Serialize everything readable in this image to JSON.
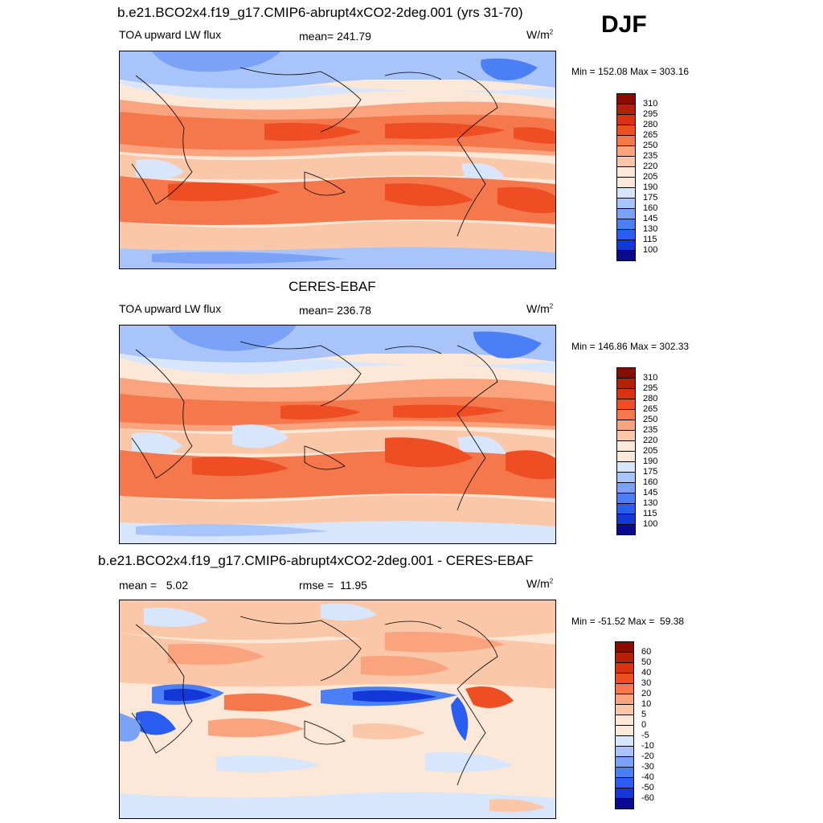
{
  "season": "DJF",
  "units_base": "W/m",
  "units_exp": "2",
  "colors": {
    "lw_scale": [
      "#0a0a8c",
      "#0b1fb4",
      "#1437d9",
      "#2a5ef0",
      "#4a7ff5",
      "#7aa2f7",
      "#a8c4fa",
      "#d7e6fc",
      "#fde8d8",
      "#fbc7a9",
      "#f9a47f",
      "#f5784d",
      "#ef4d23",
      "#da3210",
      "#b22006",
      "#8b0a00"
    ],
    "diff_scale": [
      "#0a0a8c",
      "#0b1fb4",
      "#1437d9",
      "#2a5ef0",
      "#4a7ff5",
      "#7aa2f7",
      "#a8c4fa",
      "#d7e6fc",
      "#fde8d8",
      "#fbc7a9",
      "#f9a47f",
      "#f5784d",
      "#ef4d23",
      "#da3210",
      "#b22006",
      "#8b0a00"
    ]
  },
  "panels": [
    {
      "title": "b.e21.BCO2x4.f19_g17.CMIP6-abrupt4xCO2-2deg.001 (yrs 31-70)",
      "left_label": "TOA upward LW flux",
      "center_label": "mean= 241.79",
      "minmax": "Min = 152.08 Max = 303.16",
      "colorbar_labels": [
        "310",
        "295",
        "280",
        "265",
        "250",
        "235",
        "220",
        "205",
        "190",
        "175",
        "160",
        "145",
        "130",
        "115",
        "100"
      ]
    },
    {
      "title": "CERES-EBAF",
      "left_label": "TOA upward LW flux",
      "center_label": "mean= 236.78",
      "minmax": "Min = 146.86 Max = 302.33",
      "colorbar_labels": [
        "310",
        "295",
        "280",
        "265",
        "250",
        "235",
        "220",
        "205",
        "190",
        "175",
        "160",
        "145",
        "130",
        "115",
        "100"
      ]
    },
    {
      "title": "b.e21.BCO2x4.f19_g17.CMIP6-abrupt4xCO2-2deg.001 - CERES-EBAF",
      "left_label": "mean =   5.02",
      "center_label": "rmse =  11.95",
      "minmax": "Min = -51.52 Max =  59.38",
      "colorbar_labels": [
        "60",
        "50",
        "40",
        "30",
        "20",
        "10",
        "5",
        "0",
        "-5",
        "-10",
        "-20",
        "-30",
        "-40",
        "-50",
        "-60"
      ]
    }
  ]
}
